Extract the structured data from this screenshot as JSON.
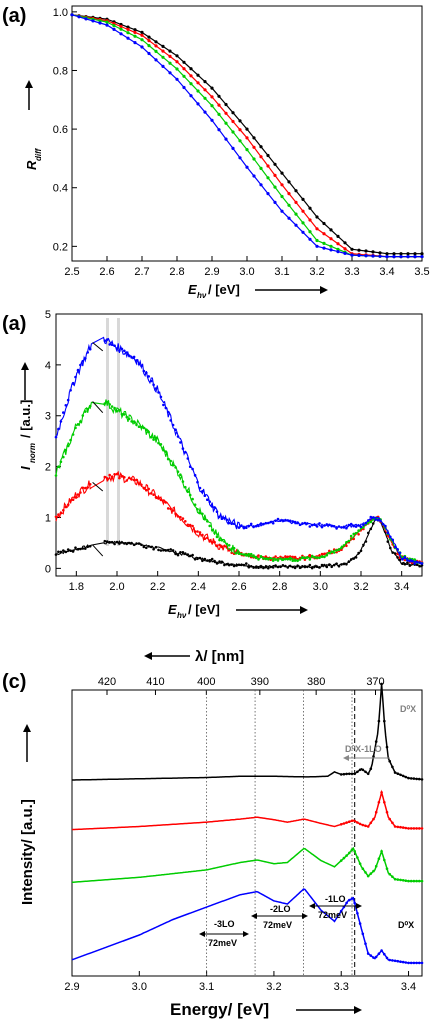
{
  "panels": [
    {
      "label": "(a)",
      "xlabel_main": "E",
      "xlabel_sub": "hν",
      "xlabel_unit": "/ [eV]",
      "ylabel_main": "R",
      "ylabel_sub": "diff",
      "ylabel_unit": ""
    },
    {
      "label": "(a)",
      "xlabel_main": "E",
      "xlabel_sub": "hν",
      "xlabel_unit": "/ [eV]",
      "ylabel_main": "I",
      "ylabel_sub": "norm",
      "ylabel_unit": "/ [a.u.]"
    },
    {
      "label": "(c)",
      "xlabel": "Energy/ [eV]",
      "ylabel": "Intensity/ [a.u.]",
      "top_axis_label": "λ/ [nm]",
      "annotations": {
        "d0x_top": "D⁰X",
        "d0x_1lo": "D⁰X-1LO",
        "d0x_bottom": "D⁰X",
        "lo3": "-3LO",
        "lo2": "-2LO",
        "lo1": "-1LO",
        "mev3": "72meV",
        "mev2": "72meV",
        "mev1": "72meV"
      }
    }
  ],
  "chart_data": [
    {
      "type": "scatter",
      "title": "(a)",
      "xlabel": "E_hν / [eV]",
      "ylabel": "R_diff",
      "xlim": [
        2.5,
        3.5
      ],
      "ylim": [
        0.15,
        1.02
      ],
      "xticks": [
        "2.5",
        "2.6",
        "2.7",
        "2.8",
        "2.9",
        "3.0",
        "3.1",
        "3.2",
        "3.3",
        "3.4",
        "3.5"
      ],
      "yticks": [
        "0.2",
        "0.4",
        "0.6",
        "0.8",
        "1.0"
      ],
      "series": [
        {
          "color": "#000000",
          "x": [
            2.5,
            2.6,
            2.7,
            2.8,
            2.9,
            3.0,
            3.1,
            3.2,
            3.3,
            3.4,
            3.5
          ],
          "y": [
            0.99,
            0.975,
            0.93,
            0.85,
            0.74,
            0.6,
            0.45,
            0.3,
            0.19,
            0.175,
            0.175
          ]
        },
        {
          "color": "#ff0000",
          "x": [
            2.5,
            2.6,
            2.7,
            2.8,
            2.9,
            3.0,
            3.1,
            3.2,
            3.3,
            3.4,
            3.5
          ],
          "y": [
            0.99,
            0.97,
            0.92,
            0.83,
            0.71,
            0.57,
            0.41,
            0.26,
            0.175,
            0.165,
            0.165
          ]
        },
        {
          "color": "#00cc00",
          "x": [
            2.5,
            2.6,
            2.7,
            2.8,
            2.9,
            3.0,
            3.1,
            3.2,
            3.3,
            3.4,
            3.5
          ],
          "y": [
            0.99,
            0.965,
            0.905,
            0.805,
            0.68,
            0.53,
            0.37,
            0.22,
            0.17,
            0.165,
            0.165
          ]
        },
        {
          "color": "#0000ff",
          "x": [
            2.5,
            2.6,
            2.7,
            2.8,
            2.9,
            3.0,
            3.1,
            3.2,
            3.3,
            3.4,
            3.5
          ],
          "y": [
            0.99,
            0.955,
            0.88,
            0.77,
            0.63,
            0.47,
            0.32,
            0.2,
            0.17,
            0.165,
            0.165
          ]
        }
      ]
    },
    {
      "type": "scatter",
      "title": "(a)",
      "xlabel": "E_hν / [eV]",
      "ylabel": "I_norm / [a.u.]",
      "xlim": [
        1.7,
        3.5
      ],
      "ylim": [
        -0.15,
        5
      ],
      "xticks": [
        "1.8",
        "2.0",
        "2.2",
        "2.4",
        "2.6",
        "2.8",
        "3.0",
        "3.2",
        "3.4"
      ],
      "yticks": [
        "0",
        "1",
        "2",
        "3",
        "4",
        "5"
      ],
      "series": [
        {
          "color": "#000000",
          "x": [
            1.7,
            1.8,
            1.9,
            2.0,
            2.1,
            2.2,
            2.3,
            2.4,
            2.5,
            2.6,
            2.7,
            2.8,
            2.9,
            3.0,
            3.1,
            3.15,
            3.2,
            3.25,
            3.28,
            3.3,
            3.35,
            3.4,
            3.5
          ],
          "y": [
            0.28,
            0.38,
            0.48,
            0.52,
            0.48,
            0.4,
            0.3,
            0.2,
            0.12,
            0.07,
            0.04,
            0.03,
            0.03,
            0.04,
            0.08,
            0.15,
            0.35,
            0.8,
            1.0,
            0.9,
            0.35,
            0.1,
            0.05
          ]
        },
        {
          "color": "#ff0000",
          "x": [
            1.7,
            1.8,
            1.9,
            2.0,
            2.1,
            2.2,
            2.3,
            2.4,
            2.5,
            2.6,
            2.7,
            2.8,
            2.9,
            3.0,
            3.1,
            3.2,
            3.25,
            3.28,
            3.3,
            3.35,
            3.4,
            3.5
          ],
          "y": [
            1.0,
            1.45,
            1.75,
            1.82,
            1.7,
            1.4,
            1.05,
            0.7,
            0.45,
            0.28,
            0.22,
            0.2,
            0.2,
            0.25,
            0.38,
            0.75,
            0.95,
            1.0,
            0.92,
            0.5,
            0.2,
            0.1
          ]
        },
        {
          "color": "#00cc00",
          "x": [
            1.7,
            1.8,
            1.9,
            2.0,
            2.1,
            2.2,
            2.3,
            2.4,
            2.5,
            2.6,
            2.7,
            2.8,
            2.9,
            3.0,
            3.1,
            3.2,
            3.25,
            3.28,
            3.3,
            3.35,
            3.4,
            3.5
          ],
          "y": [
            1.85,
            2.8,
            3.4,
            3.1,
            2.85,
            2.5,
            1.9,
            1.15,
            0.6,
            0.3,
            0.2,
            0.18,
            0.18,
            0.22,
            0.4,
            0.78,
            0.95,
            1.0,
            0.95,
            0.55,
            0.22,
            0.1
          ]
        },
        {
          "color": "#0000ff",
          "x": [
            1.7,
            1.8,
            1.9,
            2.0,
            2.1,
            2.2,
            2.3,
            2.4,
            2.5,
            2.6,
            2.7,
            2.8,
            2.9,
            3.0,
            3.1,
            3.2,
            3.25,
            3.28,
            3.3,
            3.35,
            3.4,
            3.5
          ],
          "y": [
            2.6,
            3.8,
            4.6,
            4.35,
            4.1,
            3.5,
            2.6,
            1.65,
            1.05,
            0.82,
            0.85,
            0.95,
            0.87,
            0.85,
            0.82,
            0.85,
            0.98,
            1.0,
            0.95,
            0.6,
            0.2,
            0.1
          ]
        }
      ]
    },
    {
      "type": "line",
      "title": "(c)",
      "xlabel": "Energy/ [eV]",
      "ylabel": "Intensity/ [a.u.]",
      "top_xlabel": "λ/ [nm]",
      "xlim": [
        2.9,
        3.42
      ],
      "xticks": [
        "2.9",
        "3.0",
        "3.1",
        "3.2",
        "3.3",
        "3.4"
      ],
      "top_ticks": [
        "420",
        "410",
        "400",
        "390",
        "380",
        "370"
      ],
      "vlines_eV": [
        3.1,
        3.172,
        3.244,
        3.316
      ],
      "dashed_vline_eV": 3.32,
      "series": [
        {
          "color": "#000000",
          "offset": 3.0,
          "x": [
            2.9,
            3.0,
            3.1,
            3.15,
            3.2,
            3.25,
            3.28,
            3.29,
            3.3,
            3.31,
            3.32,
            3.33,
            3.34,
            3.345,
            3.355,
            3.36,
            3.365,
            3.37,
            3.38,
            3.4,
            3.42
          ],
          "y": [
            0.0,
            0.02,
            0.04,
            0.06,
            0.06,
            0.05,
            0.06,
            0.13,
            0.09,
            0.1,
            0.1,
            0.18,
            0.1,
            0.2,
            0.8,
            1.55,
            0.8,
            0.35,
            0.12,
            0.03,
            0.01
          ]
        },
        {
          "color": "#ff0000",
          "offset": 2.2,
          "x": [
            2.9,
            3.0,
            3.1,
            3.15,
            3.175,
            3.2,
            3.22,
            3.245,
            3.27,
            3.29,
            3.31,
            3.318,
            3.33,
            3.34,
            3.35,
            3.36,
            3.37,
            3.38,
            3.4,
            3.42
          ],
          "y": [
            0.0,
            0.05,
            0.12,
            0.17,
            0.2,
            0.16,
            0.12,
            0.17,
            0.1,
            0.05,
            0.12,
            0.15,
            0.08,
            0.05,
            0.2,
            0.6,
            0.2,
            0.05,
            0.02,
            0.02
          ]
        },
        {
          "color": "#00cc00",
          "offset": 1.35,
          "x": [
            2.9,
            3.0,
            3.1,
            3.15,
            3.175,
            3.2,
            3.22,
            3.245,
            3.27,
            3.29,
            3.31,
            3.318,
            3.33,
            3.34,
            3.35,
            3.36,
            3.37,
            3.38,
            3.4,
            3.42
          ],
          "y": [
            0.0,
            0.08,
            0.2,
            0.32,
            0.36,
            0.3,
            0.32,
            0.55,
            0.35,
            0.25,
            0.45,
            0.55,
            0.25,
            0.1,
            0.2,
            0.5,
            0.15,
            0.05,
            0.02,
            0.02
          ]
        },
        {
          "color": "#0000ff",
          "offset": 0.0,
          "x": [
            2.9,
            2.95,
            3.0,
            3.05,
            3.1,
            3.15,
            3.175,
            3.2,
            3.22,
            3.245,
            3.27,
            3.29,
            3.31,
            3.318,
            3.33,
            3.34,
            3.35,
            3.36,
            3.37,
            3.4,
            3.42
          ],
          "y": [
            0.1,
            0.3,
            0.5,
            0.75,
            0.95,
            1.15,
            1.2,
            1.05,
            1.0,
            1.25,
            0.9,
            0.72,
            1.05,
            1.1,
            0.6,
            0.2,
            0.12,
            0.25,
            0.1,
            0.05,
            0.05
          ]
        }
      ]
    }
  ]
}
